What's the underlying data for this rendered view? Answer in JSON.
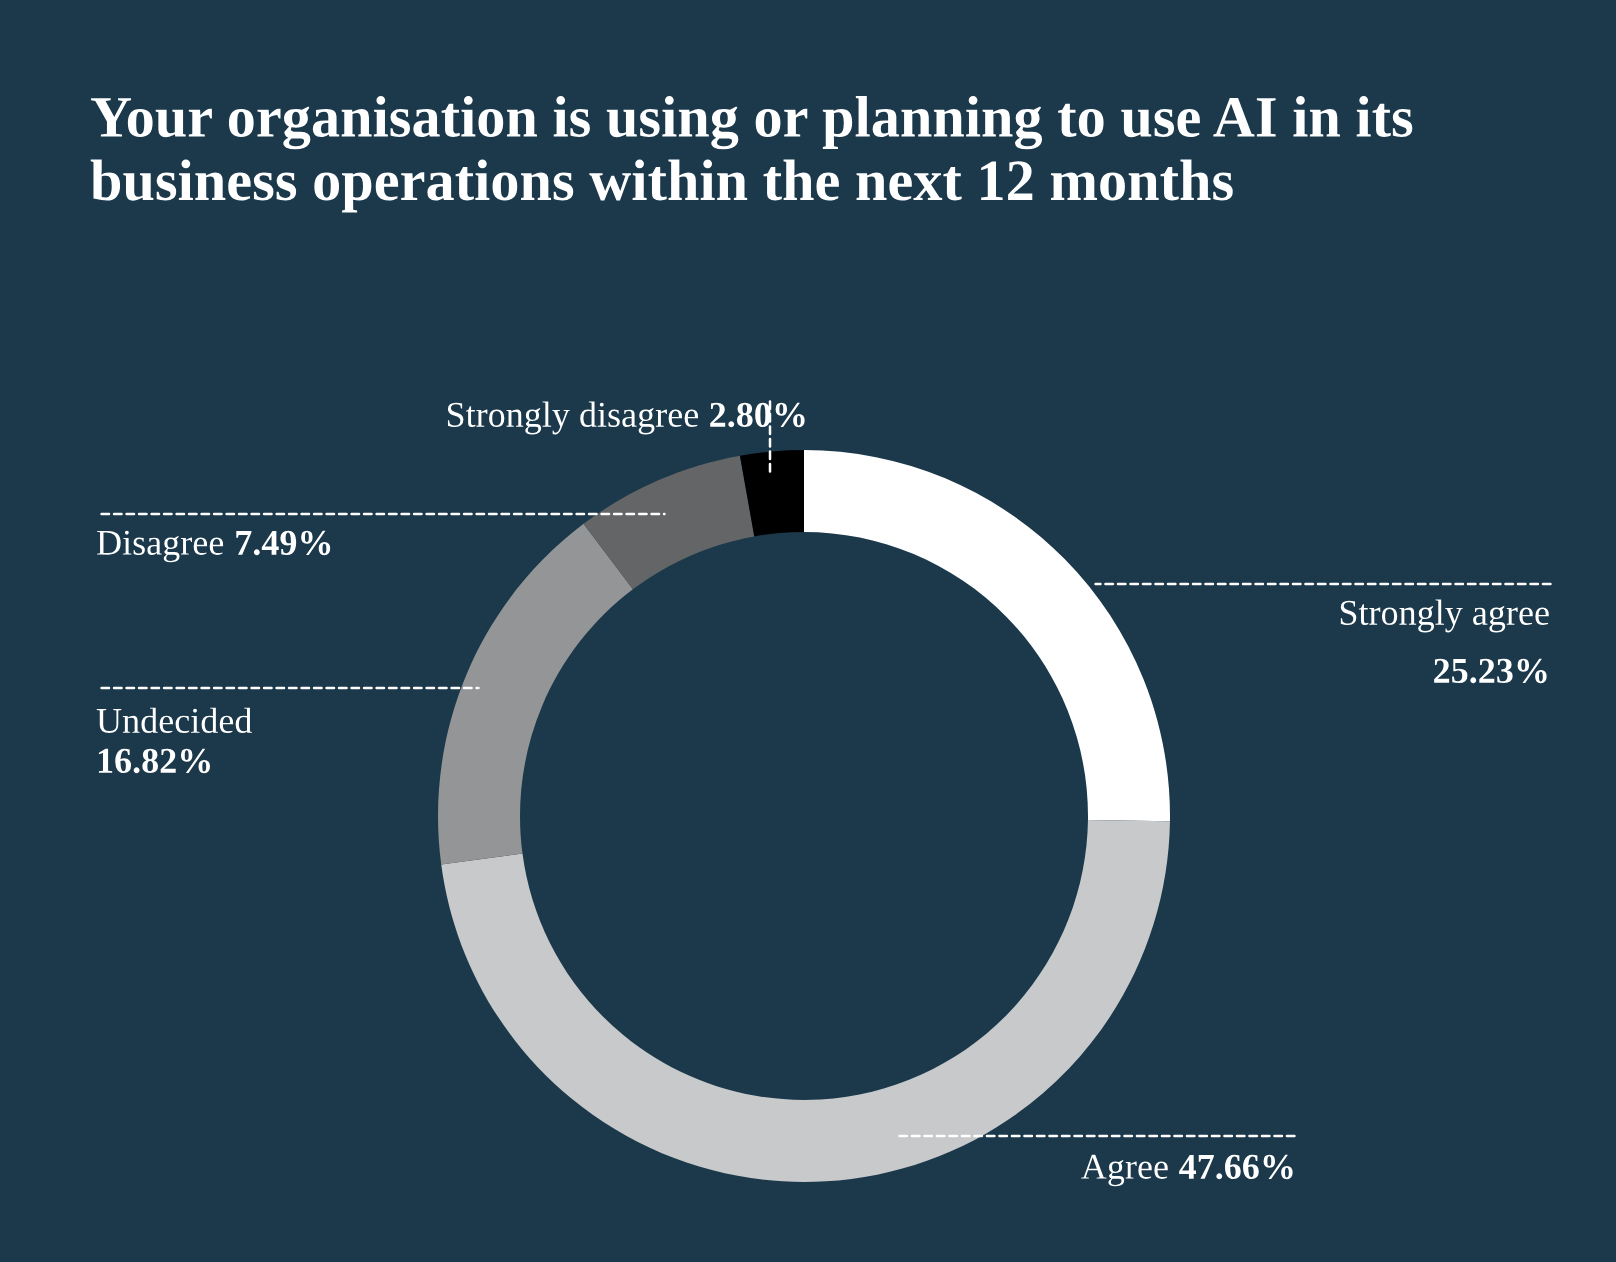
{
  "chart_data": {
    "type": "donut",
    "title": "Your organisation is using or planning to use AI in its business operations within the next 12 months",
    "categories": [
      "Strongly agree",
      "Agree",
      "Undecided",
      "Disagree",
      "Strongly disagree"
    ],
    "values": [
      25.23,
      47.66,
      16.82,
      7.49,
      2.8
    ],
    "value_labels": [
      "25.23%",
      "47.66%",
      "16.82%",
      "7.49%",
      "2.80%"
    ],
    "colors": [
      "#ffffff",
      "#c8c9cb",
      "#949596",
      "#646567",
      "#000000"
    ],
    "legend": false
  }
}
